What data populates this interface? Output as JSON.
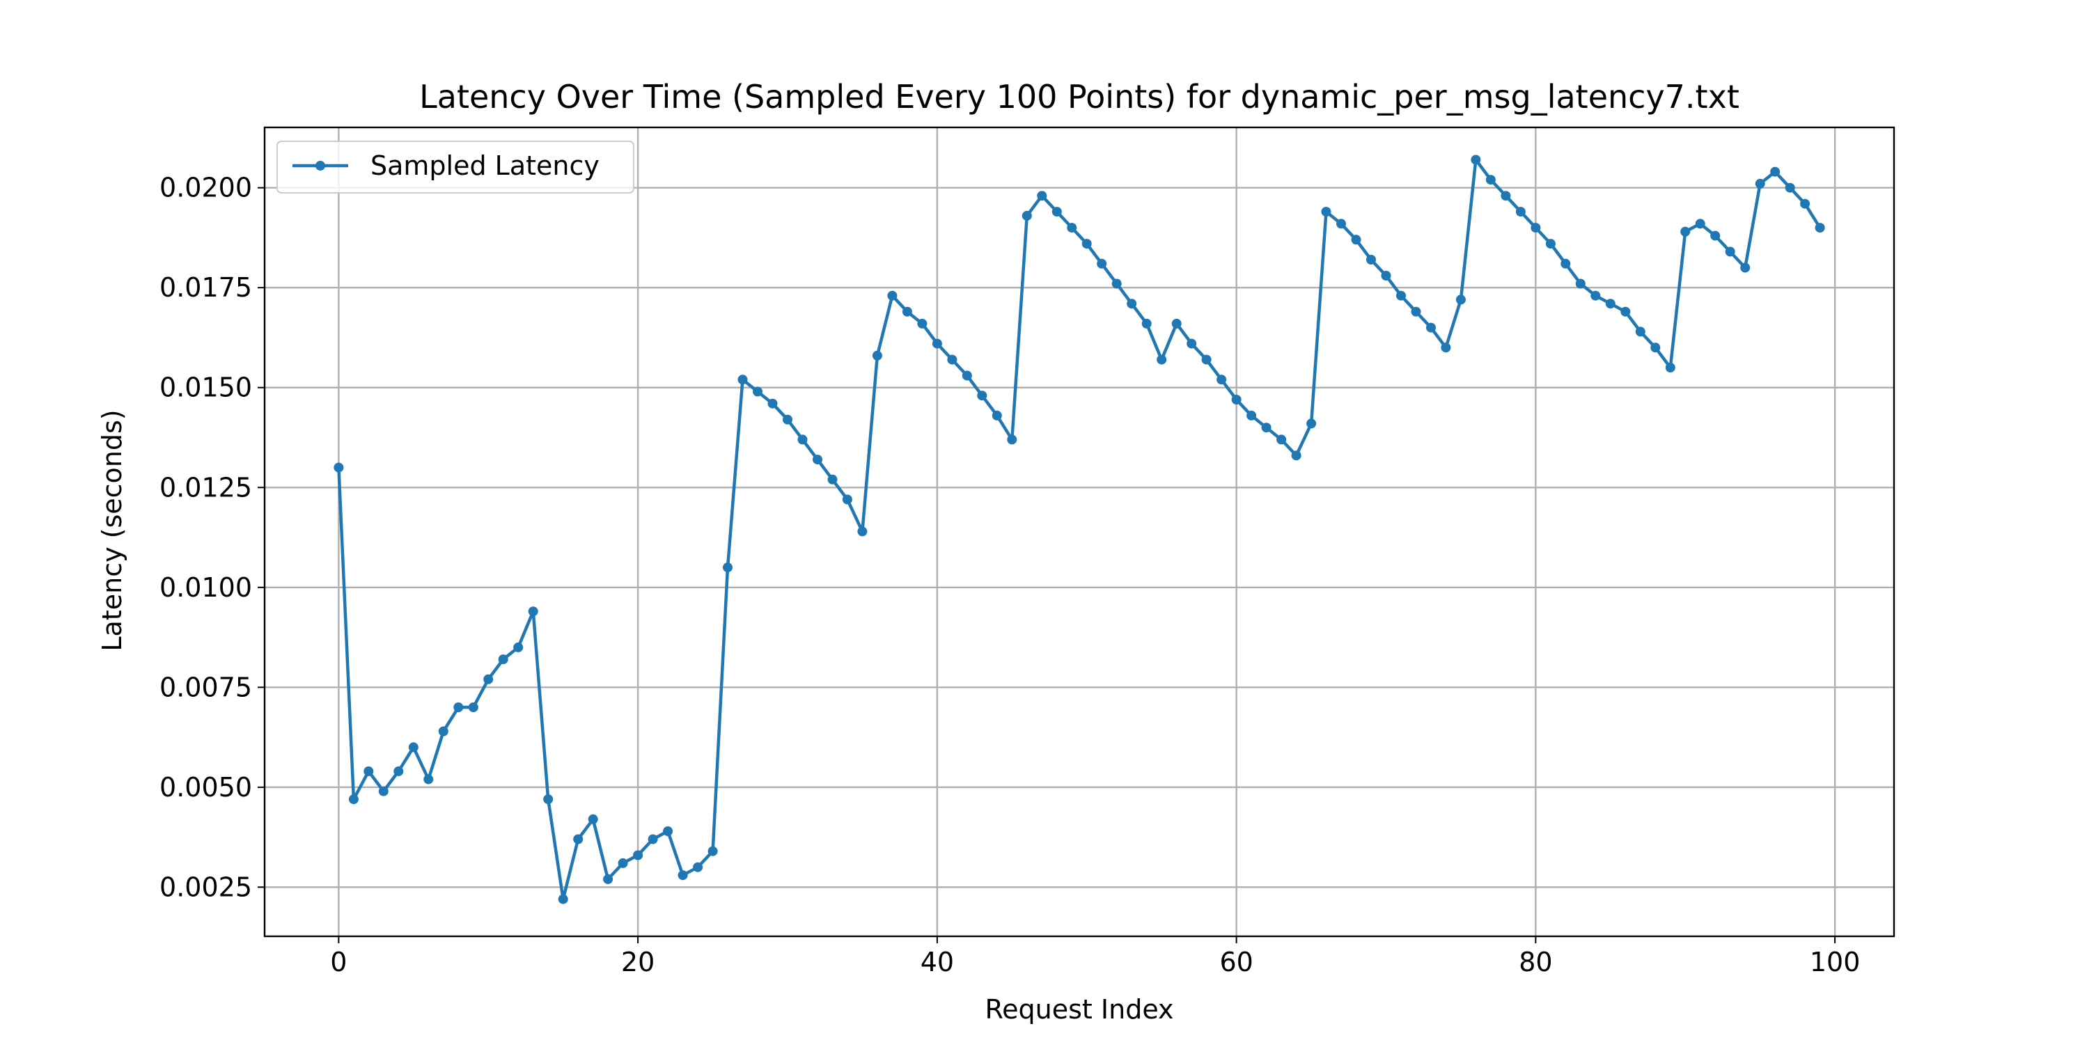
{
  "chart_data": {
    "type": "line",
    "title": "Latency Over Time (Sampled Every 100 Points) for dynamic_per_msg_latency7.txt",
    "xlabel": "Request Index",
    "ylabel": "Latency (seconds)",
    "xlim": [
      -4.95,
      103.95
    ],
    "ylim": [
      0.00127,
      0.02151
    ],
    "xticks": [
      0,
      20,
      40,
      60,
      80,
      100
    ],
    "xtick_labels": [
      "0",
      "20",
      "40",
      "60",
      "80",
      "100"
    ],
    "yticks": [
      0.0025,
      0.005,
      0.0075,
      0.01,
      0.0125,
      0.015,
      0.0175,
      0.02
    ],
    "ytick_labels": [
      "0.0025",
      "0.0050",
      "0.0075",
      "0.0100",
      "0.0125",
      "0.0150",
      "0.0175",
      "0.0200"
    ],
    "grid": true,
    "legend_position": "top-left",
    "series": [
      {
        "name": "Sampled Latency",
        "color": "#1f77b4",
        "marker": "circle",
        "x": [
          0,
          1,
          2,
          3,
          4,
          5,
          6,
          7,
          8,
          9,
          10,
          11,
          12,
          13,
          14,
          15,
          16,
          17,
          18,
          19,
          20,
          21,
          22,
          23,
          24,
          25,
          26,
          27,
          28,
          29,
          30,
          31,
          32,
          33,
          34,
          35,
          36,
          37,
          38,
          39,
          40,
          41,
          42,
          43,
          44,
          45,
          46,
          47,
          48,
          49,
          50,
          51,
          52,
          53,
          54,
          55,
          56,
          57,
          58,
          59,
          60,
          61,
          62,
          63,
          64,
          65,
          66,
          67,
          68,
          69,
          70,
          71,
          72,
          73,
          74,
          75,
          76,
          77,
          78,
          79,
          80,
          81,
          82,
          83,
          84,
          85,
          86,
          87,
          88,
          89,
          90,
          91,
          92,
          93,
          94,
          95,
          96,
          97,
          98,
          99
        ],
        "y": [
          0.013,
          0.0047,
          0.0054,
          0.0049,
          0.0054,
          0.006,
          0.0052,
          0.0064,
          0.007,
          0.007,
          0.0077,
          0.0082,
          0.0085,
          0.0094,
          0.0047,
          0.0022,
          0.0037,
          0.0042,
          0.0027,
          0.0031,
          0.0033,
          0.0037,
          0.0039,
          0.0028,
          0.003,
          0.0034,
          0.0105,
          0.0152,
          0.0149,
          0.0146,
          0.0142,
          0.0137,
          0.0132,
          0.0127,
          0.0122,
          0.0114,
          0.0158,
          0.0173,
          0.0169,
          0.0166,
          0.0161,
          0.0157,
          0.0153,
          0.0148,
          0.0143,
          0.0137,
          0.0193,
          0.0198,
          0.0194,
          0.019,
          0.0186,
          0.0181,
          0.0176,
          0.0171,
          0.0166,
          0.0157,
          0.0166,
          0.0161,
          0.0157,
          0.0152,
          0.0147,
          0.0143,
          0.014,
          0.0137,
          0.0133,
          0.0141,
          0.0194,
          0.0191,
          0.0187,
          0.0182,
          0.0178,
          0.0173,
          0.0169,
          0.0165,
          0.016,
          0.0172,
          0.0207,
          0.0202,
          0.0198,
          0.0194,
          0.019,
          0.0186,
          0.0181,
          0.0176,
          0.0173,
          0.0171,
          0.0169,
          0.0164,
          0.016,
          0.0155,
          0.0189,
          0.0191,
          0.0188,
          0.0184,
          0.018,
          0.0201,
          0.0204,
          0.02,
          0.0196,
          0.019
        ]
      }
    ]
  }
}
